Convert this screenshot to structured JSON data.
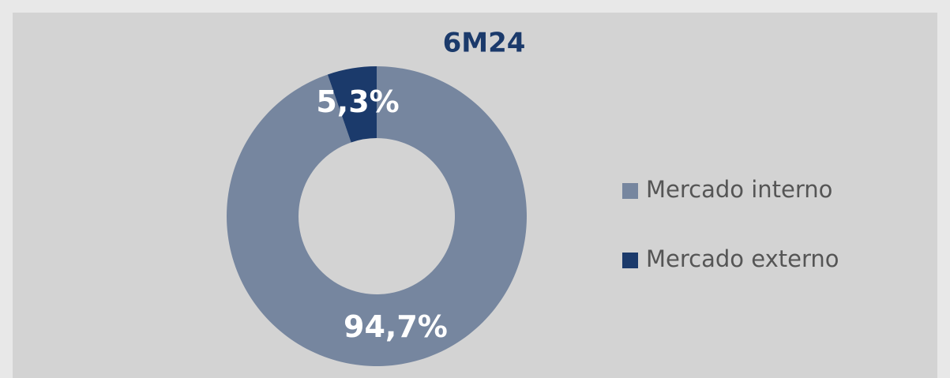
{
  "chart_data": {
    "type": "donut",
    "title": "6M24",
    "categories": [
      "Mercado interno",
      "Mercado externo"
    ],
    "values": [
      94.7,
      5.3
    ],
    "value_labels": [
      "94,7%",
      "5,3%"
    ],
    "colors": [
      "#76869f",
      "#1b3a6b"
    ]
  }
}
